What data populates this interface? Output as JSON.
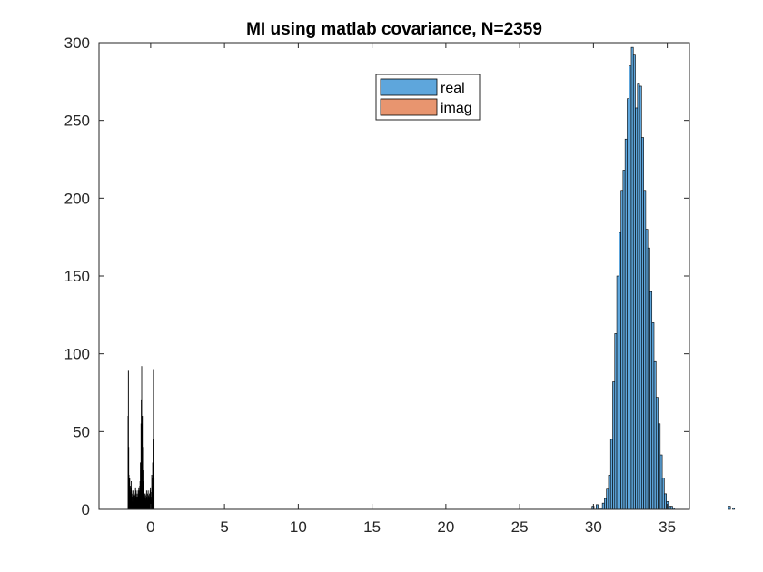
{
  "figure": {
    "background": "#ffffff"
  },
  "chart_data": {
    "type": "bar",
    "title": "MI using matlab covariance, N=2359",
    "xlabel": "",
    "ylabel": "",
    "xlim": [
      -3.5,
      36.5
    ],
    "ylim": [
      0,
      300
    ],
    "xticks": [
      0,
      5,
      10,
      15,
      20,
      25,
      30,
      35
    ],
    "yticks": [
      0,
      50,
      100,
      150,
      200,
      250,
      300
    ],
    "grid": false,
    "legend": {
      "location": "top-center",
      "entries": [
        "real",
        "imag"
      ]
    },
    "series": [
      {
        "name": "real",
        "color": "#5ea6dc",
        "edgecolor": "#000000",
        "bin_width": 0.14,
        "bins_start": 29.9,
        "values": [
          2,
          0,
          3,
          0,
          1,
          4,
          7,
          13,
          22,
          45,
          82,
          113,
          150,
          178,
          205,
          218,
          238,
          264,
          285,
          297,
          292,
          258,
          274,
          272,
          239,
          205,
          180,
          168,
          140,
          120,
          95,
          72,
          55,
          35,
          20,
          10,
          5,
          2,
          2,
          1,
          0,
          0,
          0,
          0,
          0,
          0,
          0,
          0,
          0,
          0,
          0,
          0,
          0,
          0,
          0,
          0,
          0,
          0,
          0,
          0,
          0,
          0,
          0,
          0,
          0,
          0,
          2,
          0,
          1,
          0,
          0,
          0,
          0,
          0
        ]
      },
      {
        "name": "imag",
        "color": "#e8956f",
        "edgecolor": "#000000",
        "bin_width": 0.022,
        "bins_start": -1.55,
        "values": [
          60,
          89,
          40,
          22,
          19,
          20,
          12,
          15,
          11,
          14,
          18,
          12,
          10,
          8,
          5,
          9,
          12,
          10,
          8,
          6,
          9,
          7,
          10,
          14,
          8,
          12,
          10,
          8,
          6,
          8,
          10,
          12,
          9,
          14,
          12,
          10,
          15,
          18,
          30,
          25,
          55,
          70,
          92,
          55,
          60,
          40,
          25,
          18,
          12,
          10,
          9,
          8,
          10,
          7,
          6,
          9,
          10,
          12,
          8,
          7,
          10,
          6,
          12,
          9,
          8,
          7,
          10,
          9,
          12,
          14,
          8,
          6,
          11,
          22,
          15,
          20,
          30,
          45,
          90,
          30,
          20
        ]
      }
    ]
  }
}
